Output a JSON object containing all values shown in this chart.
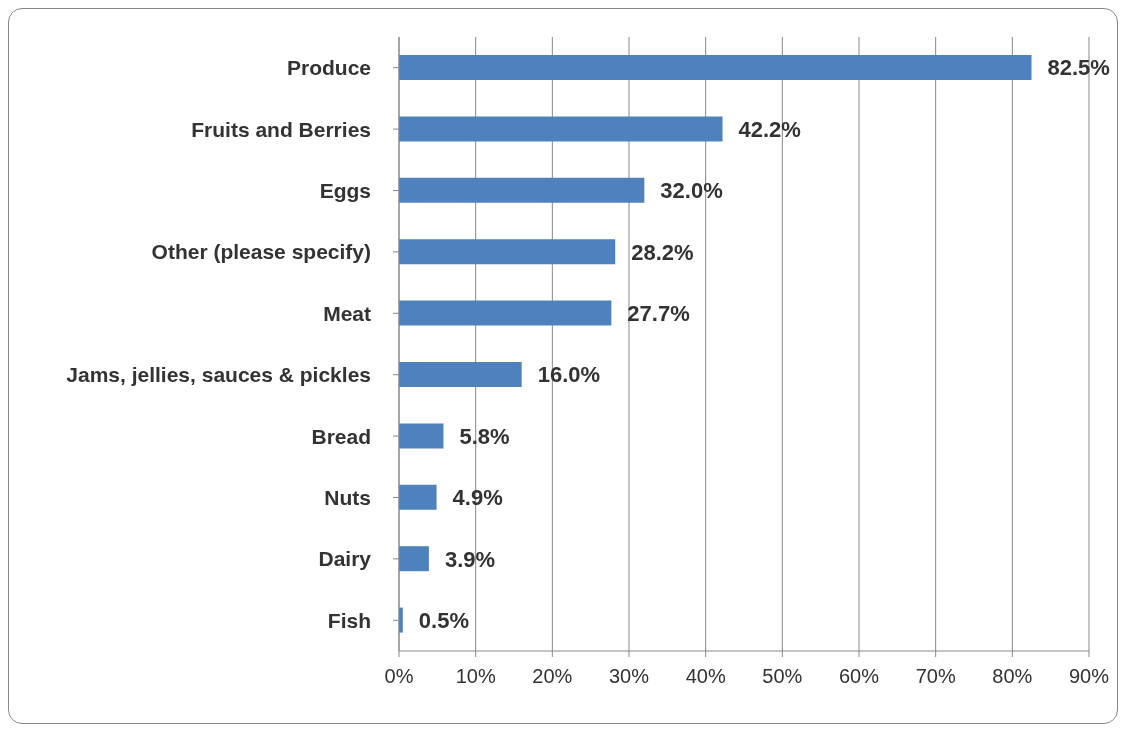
{
  "chart_data": {
    "type": "bar",
    "orientation": "horizontal",
    "categories": [
      "Produce",
      "Fruits and Berries",
      "Eggs",
      "Other (please specify)",
      "Meat",
      "Jams, jellies, sauces & pickles",
      "Bread",
      "Nuts",
      "Dairy",
      "Fish"
    ],
    "values": [
      82.5,
      42.2,
      32.0,
      28.2,
      27.7,
      16.0,
      5.8,
      4.9,
      3.9,
      0.5
    ],
    "value_labels": [
      "82.5%",
      "42.2%",
      "32.0%",
      "28.2%",
      "27.7%",
      "16.0%",
      "5.8%",
      "4.9%",
      "3.9%",
      "0.5%"
    ],
    "color": "#4f81bd",
    "xlim": [
      0,
      90
    ],
    "xticks": [
      {
        "value": 0,
        "label": "0%"
      },
      {
        "value": 10,
        "label": "10%"
      },
      {
        "value": 20,
        "label": "20%"
      },
      {
        "value": 30,
        "label": "30%"
      },
      {
        "value": 40,
        "label": "40%"
      },
      {
        "value": 50,
        "label": "50%"
      },
      {
        "value": 60,
        "label": "60%"
      },
      {
        "value": 70,
        "label": "70%"
      },
      {
        "value": 80,
        "label": "80%"
      },
      {
        "value": 90,
        "label": "90%"
      }
    ],
    "grid": "x",
    "legend": false
  }
}
